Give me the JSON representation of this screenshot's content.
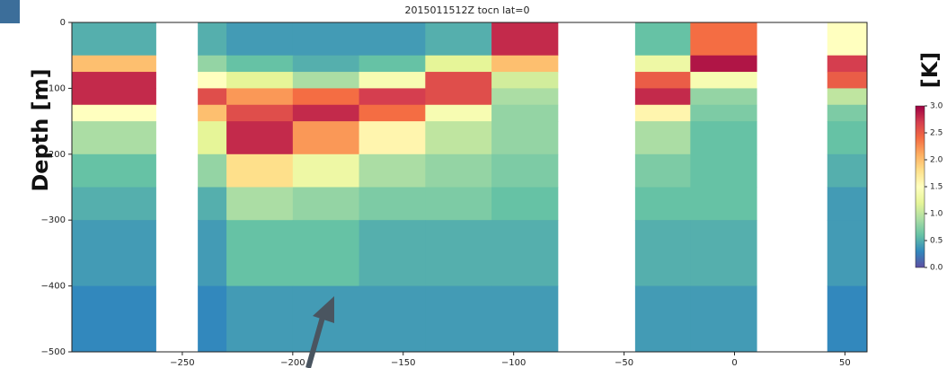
{
  "chart_data": {
    "type": "heatmap",
    "title": "2015011512Z tocn lat=0",
    "y_label": "Depth [m]",
    "colorbar_label": "[K]",
    "colormap": "Spectral_r",
    "xlim": [
      -300,
      60
    ],
    "ylim": [
      -500,
      0
    ],
    "clim": [
      0,
      3
    ],
    "xticks": [
      {
        "value": -250,
        "label": "−250"
      },
      {
        "value": -200,
        "label": "−200"
      },
      {
        "value": -150,
        "label": "−150"
      },
      {
        "value": -100,
        "label": "−100"
      },
      {
        "value": -50,
        "label": "−50"
      },
      0,
      50
    ],
    "yticks": [
      0,
      {
        "value": -100,
        "label": "−100"
      },
      {
        "value": -200,
        "label": "−200"
      },
      {
        "value": -300,
        "label": "−300"
      },
      {
        "value": -400,
        "label": "−400"
      },
      {
        "value": -500,
        "label": "−500"
      }
    ],
    "cticks": [
      {
        "value": 0,
        "label": "0.0"
      },
      {
        "value": 0.5,
        "label": "0.5"
      },
      {
        "value": 1,
        "label": "1.0"
      },
      {
        "value": 1.5,
        "label": "1.5"
      },
      {
        "value": 2,
        "label": "2.0"
      },
      {
        "value": 2.5,
        "label": "2.5"
      },
      {
        "value": 3,
        "label": "3.0"
      }
    ],
    "x_edges": [
      -300,
      -262,
      -243,
      -230,
      -200,
      -170,
      -140,
      -110,
      -80,
      -45,
      -20,
      10,
      42,
      60
    ],
    "y_edges": [
      0,
      -50,
      -75,
      -100,
      -125,
      -150,
      -200,
      -250,
      -300,
      -400,
      -500
    ],
    "values": [
      [
        0.5,
        null,
        0.5,
        0.4,
        0.4,
        0.4,
        0.5,
        2.8,
        null,
        0.6,
        2.4,
        null,
        1.5
      ],
      [
        2.0,
        null,
        0.8,
        0.6,
        0.5,
        0.6,
        1.2,
        2.0,
        null,
        1.3,
        2.9,
        null,
        2.7
      ],
      [
        2.8,
        null,
        1.5,
        1.2,
        0.9,
        1.4,
        2.6,
        1.1,
        null,
        2.5,
        1.4,
        null,
        2.5
      ],
      [
        2.8,
        null,
        2.6,
        2.2,
        2.4,
        2.7,
        2.6,
        0.9,
        null,
        2.8,
        0.8,
        null,
        1.0
      ],
      [
        1.5,
        null,
        2.0,
        2.6,
        2.8,
        2.4,
        1.4,
        0.8,
        null,
        1.6,
        0.7,
        null,
        0.7
      ],
      [
        0.9,
        null,
        1.2,
        2.8,
        2.2,
        1.6,
        1.0,
        0.8,
        null,
        0.9,
        0.6,
        null,
        0.6
      ],
      [
        0.6,
        null,
        0.8,
        1.8,
        1.3,
        0.9,
        0.8,
        0.7,
        null,
        0.7,
        0.6,
        null,
        0.5
      ],
      [
        0.5,
        null,
        0.5,
        0.9,
        0.8,
        0.7,
        0.7,
        0.6,
        null,
        0.6,
        0.6,
        null,
        0.4
      ],
      [
        0.4,
        null,
        0.4,
        0.6,
        0.6,
        0.5,
        0.5,
        0.5,
        null,
        0.5,
        0.5,
        null,
        0.4
      ],
      [
        0.3,
        null,
        0.3,
        0.4,
        0.4,
        0.4,
        0.4,
        0.4,
        null,
        0.4,
        0.4,
        null,
        0.3
      ]
    ]
  }
}
